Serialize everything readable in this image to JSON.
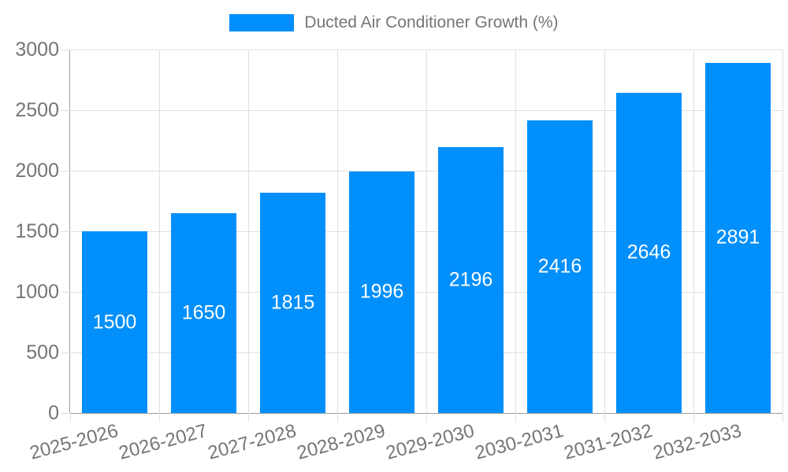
{
  "legend": {
    "series_label": "Ducted Air Conditioner Growth (%)"
  },
  "chart_data": {
    "type": "bar",
    "title": "Ducted Air Conditioner Growth (%)",
    "categories": [
      "2025-2026",
      "2026-2027",
      "2027-2028",
      "2028-2029",
      "2029-2030",
      "2030-2031",
      "2031-2032",
      "2032-2033"
    ],
    "series": [
      {
        "name": "Ducted Air Conditioner Growth (%)",
        "values": [
          1500,
          1650,
          1815,
          1996,
          2196,
          2416,
          2646,
          2891
        ]
      }
    ],
    "xlabel": "",
    "ylabel": "",
    "ylim": [
      0,
      3000
    ],
    "yticks": [
      0,
      500,
      1000,
      1500,
      2000,
      2500,
      3000
    ],
    "grid": true,
    "legend_position": "top",
    "x_label_rotation_deg": -15,
    "colors": {
      "bar": "#008FFB",
      "value_label": "#FFFFFF",
      "axis_text": "#757575",
      "grid_line": "#E0E0E0",
      "axis_line": "#9E9E9E",
      "background": "#FFFFFF"
    }
  }
}
